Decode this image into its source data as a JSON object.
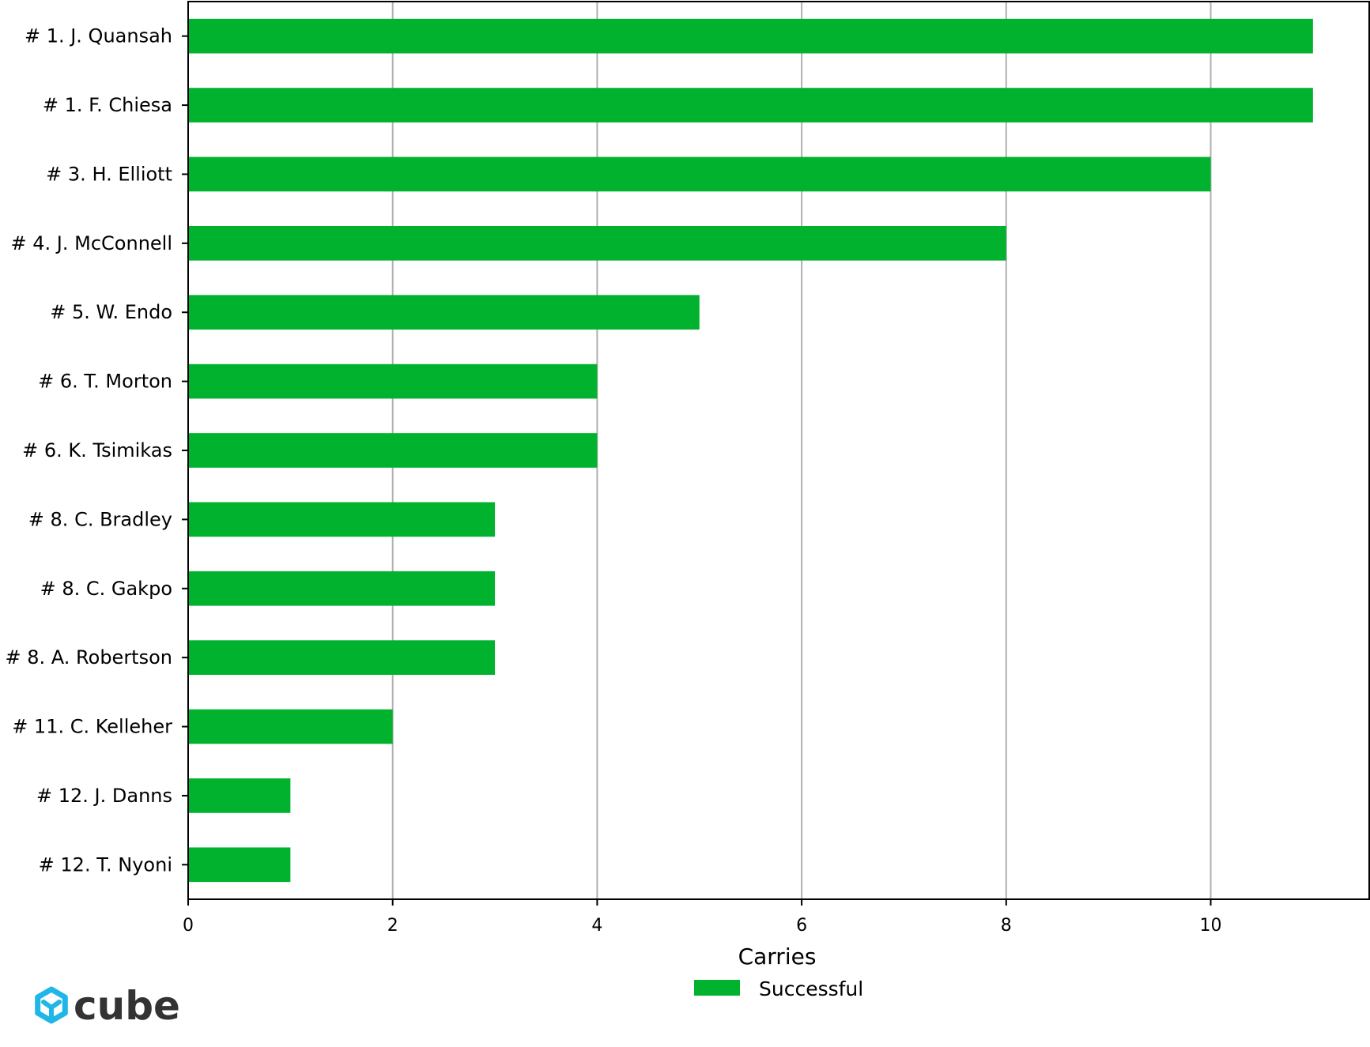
{
  "chart_data": {
    "type": "bar",
    "orientation": "horizontal",
    "categories": [
      "# 1.  J. Quansah",
      "# 1.  F. Chiesa",
      "# 3.  H. Elliott",
      "# 4.  J. McConnell",
      "# 5.  W. Endo",
      "# 6.  T. Morton",
      "# 6.  K. Tsimikas",
      "# 8.  C. Bradley",
      "# 8.  C. Gakpo",
      "# 8.  A. Robertson",
      "# 11.  C. Kelleher",
      "# 12.  J. Danns",
      "# 12.  T. Nyoni"
    ],
    "series": [
      {
        "name": "Successful",
        "color": "#00b22d",
        "values": [
          11,
          11,
          10,
          8,
          5,
          4,
          4,
          3,
          3,
          3,
          2,
          1,
          1
        ]
      }
    ],
    "xlabel": "Carries",
    "xlim": [
      0,
      11.55
    ],
    "xticks": [
      0,
      2,
      4,
      6,
      8,
      10
    ],
    "grid": "vertical",
    "legend_position": "bottom-center"
  },
  "logo": {
    "text": "cube",
    "icon": "cube-logo-icon",
    "color": "#1fb6e8"
  }
}
